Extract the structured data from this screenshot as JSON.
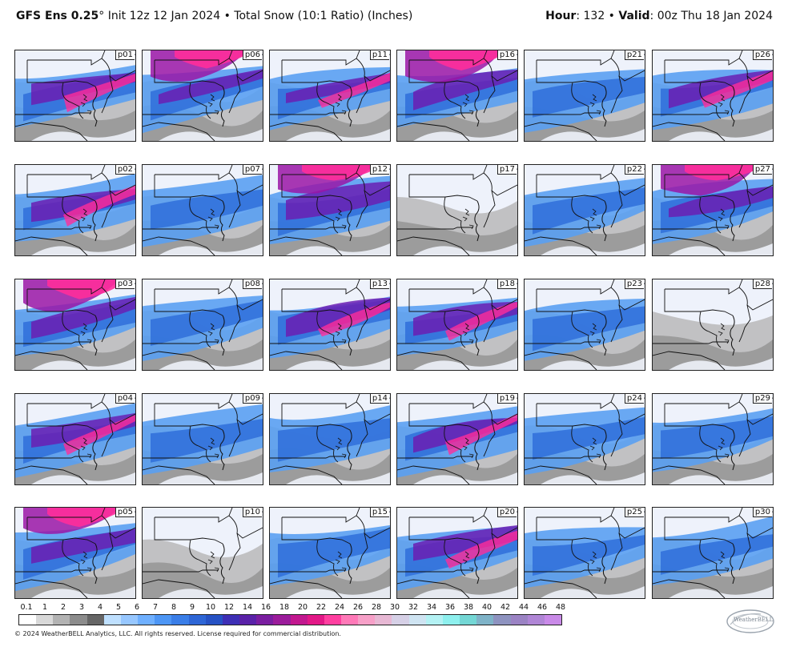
{
  "header": {
    "model": "GFS Ens 0.25",
    "degree": "°",
    "init": " Init 12z 12 Jan 2024",
    "bullet1": " • ",
    "product": "Total Snow (10:1 Ratio) (Inches)",
    "hour_label": "Hour",
    "hour_value": ": 132",
    "bullet2": " • ",
    "valid_label": "Valid",
    "valid_value": ": 00z Thu 18 Jan 2024"
  },
  "panels": [
    "p01",
    "p06",
    "p11",
    "p16",
    "p21",
    "p26",
    "p02",
    "p07",
    "p12",
    "p17",
    "p22",
    "p27",
    "p03",
    "p08",
    "p13",
    "p18",
    "p23",
    "p28",
    "p04",
    "p09",
    "p14",
    "p19",
    "p24",
    "p29",
    "p05",
    "p10",
    "p15",
    "p20",
    "p25",
    "p30"
  ],
  "panel_intensity": [
    3,
    4,
    3,
    4,
    2,
    3,
    3,
    2,
    4,
    1,
    2,
    4,
    4,
    2,
    3,
    3,
    2,
    1,
    3,
    2,
    2,
    3,
    2,
    2,
    4,
    1,
    2,
    3,
    2,
    2
  ],
  "scale": {
    "labels": [
      "0.1",
      "1",
      "2",
      "3",
      "4",
      "5",
      "6",
      "7",
      "8",
      "9",
      "10",
      "12",
      "14",
      "16",
      "18",
      "20",
      "22",
      "24",
      "26",
      "28",
      "30",
      "32",
      "34",
      "36",
      "38",
      "40",
      "42",
      "44",
      "46",
      "48"
    ],
    "colors": [
      "#ffffff",
      "#d9d9d9",
      "#b3b3b3",
      "#8c8c8c",
      "#666666",
      "#bfe0ff",
      "#97c7ff",
      "#6fb0ff",
      "#4d96f5",
      "#3a7ee8",
      "#2e66d6",
      "#2652c4",
      "#3e2fb5",
      "#5a22a8",
      "#7a1ea0",
      "#9b1c9b",
      "#c2188f",
      "#e21887",
      "#ff3fa0",
      "#ff79b8",
      "#f7a0c8",
      "#e7b8d4",
      "#d6d0e6",
      "#cfe4f2",
      "#b4f2f4",
      "#8ef0ee",
      "#74d7d5",
      "#7fb3c8",
      "#8e93c0",
      "#9b83c4",
      "#b086d6",
      "#c98ae8"
    ]
  },
  "footer": {
    "copyright": "© 2024 WeatherBELL Analytics, LLC. All rights reserved. License required for commercial distribution.",
    "logo_text": "WeatherBELL"
  }
}
